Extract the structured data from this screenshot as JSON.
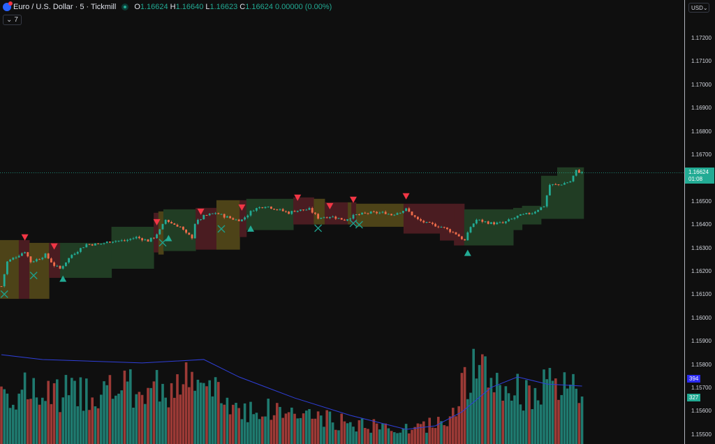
{
  "header": {
    "symbol_title": "Euro / U.S. Dollar · 5 · Tickmill",
    "o_label": "O",
    "o": "1.16624",
    "h_label": "H",
    "h": "1.16640",
    "l_label": "L",
    "l": "1.16623",
    "c_label": "C",
    "c": "1.16624",
    "change": "0.00000 (0.00%)",
    "indicators_count": "7"
  },
  "axis": {
    "currency": "USD",
    "ticks": [
      "1.17200",
      "1.17100",
      "1.17000",
      "1.16900",
      "1.16800",
      "1.16700",
      "1.16500",
      "1.16400",
      "1.16300",
      "1.16200",
      "1.16100",
      "1.16000",
      "1.15900",
      "1.15800",
      "1.15700",
      "1.15600",
      "1.15500"
    ],
    "last_price": "1.16624",
    "countdown": "01:08",
    "volume_ma_label": "394",
    "volume_label": "327"
  },
  "colors": {
    "background": "#0f0f0f",
    "up": "#22ab94",
    "down": "#ef6c4a",
    "band_green": "#213d24",
    "band_yellow": "#4d4318",
    "band_red": "#4a1c21",
    "signal_sell": "#f23645",
    "signal_buy": "#22ab94",
    "volume_ma": "#2f3fd9",
    "volume_ma_label": "#2962ff"
  },
  "chart_data": {
    "type": "candlestick",
    "bar_count": 199,
    "close_path": [
      [
        0,
        1.16137
      ],
      [
        2,
        1.16242
      ],
      [
        6,
        1.16272
      ],
      [
        8,
        1.16287
      ],
      [
        10,
        1.16242
      ],
      [
        13,
        1.16257
      ],
      [
        15,
        1.16272
      ],
      [
        18,
        1.16227
      ],
      [
        20,
        1.16212
      ],
      [
        24,
        1.16272
      ],
      [
        29,
        1.16317
      ],
      [
        33,
        1.16317
      ],
      [
        38,
        1.16332
      ],
      [
        42,
        1.16332
      ],
      [
        46,
        1.16347
      ],
      [
        50,
        1.16332
      ],
      [
        52,
        1.16347
      ],
      [
        54,
        1.16377
      ],
      [
        56,
        1.16422
      ],
      [
        58,
        1.16407
      ],
      [
        61,
        1.16392
      ],
      [
        63,
        1.16362
      ],
      [
        65,
        1.16347
      ],
      [
        66,
        1.16407
      ],
      [
        69,
        1.16437
      ],
      [
        73,
        1.16452
      ],
      [
        76,
        1.16437
      ],
      [
        80,
        1.16422
      ],
      [
        82,
        1.16422
      ],
      [
        86,
        1.16467
      ],
      [
        90,
        1.16482
      ],
      [
        94,
        1.16467
      ],
      [
        98,
        1.16452
      ],
      [
        100,
        1.16461
      ],
      [
        105,
        1.16467
      ],
      [
        108,
        1.16431
      ],
      [
        112,
        1.16437
      ],
      [
        117,
        1.16422
      ],
      [
        121,
        1.16443
      ],
      [
        126,
        1.16452
      ],
      [
        131,
        1.16452
      ],
      [
        133,
        1.16443
      ],
      [
        138,
        1.16467
      ],
      [
        142,
        1.16422
      ],
      [
        145,
        1.16407
      ],
      [
        150,
        1.16392
      ],
      [
        155,
        1.16362
      ],
      [
        158,
        1.16332
      ],
      [
        160,
        1.16392
      ],
      [
        162,
        1.16422
      ],
      [
        167,
        1.16407
      ],
      [
        171,
        1.16407
      ],
      [
        176,
        1.16437
      ],
      [
        181,
        1.16452
      ],
      [
        185,
        1.16482
      ],
      [
        187,
        1.16572
      ],
      [
        190,
        1.16572
      ],
      [
        194,
        1.16587
      ],
      [
        196,
        1.16632
      ],
      [
        198,
        1.16624
      ]
    ],
    "bands": [
      {
        "from": 0,
        "to": 6.4,
        "state": "yellow",
        "upper": 1.16335,
        "lower": 1.16083
      },
      {
        "from": 6.4,
        "to": 10,
        "state": "red",
        "upper": 1.16335,
        "lower": 1.16083
      },
      {
        "from": 10,
        "to": 16.7,
        "state": "yellow",
        "upper": 1.16323,
        "lower": 1.16083
      },
      {
        "from": 16.7,
        "to": 20.5,
        "state": "red",
        "upper": 1.16323,
        "lower": 1.16173
      },
      {
        "from": 20.5,
        "to": 38,
        "state": "green",
        "upper": 1.16323,
        "lower": 1.16173
      },
      {
        "from": 38,
        "to": 52.4,
        "state": "green",
        "upper": 1.16392,
        "lower": 1.16212
      },
      {
        "from": 52.4,
        "to": 54,
        "state": "red",
        "upper": 1.16452,
        "lower": 1.16282
      },
      {
        "from": 54,
        "to": 55.7,
        "state": "yellow",
        "upper": 1.16458,
        "lower": 1.16273
      },
      {
        "from": 55.7,
        "to": 66.7,
        "state": "green",
        "upper": 1.16467,
        "lower": 1.16288
      },
      {
        "from": 66.7,
        "to": 73.8,
        "state": "red",
        "upper": 1.16473,
        "lower": 1.16294
      },
      {
        "from": 73.8,
        "to": 81.7,
        "state": "yellow",
        "upper": 1.16506,
        "lower": 1.16294
      },
      {
        "from": 81.7,
        "to": 84,
        "state": "red",
        "upper": 1.16506,
        "lower": 1.16348
      },
      {
        "from": 84,
        "to": 100,
        "state": "green",
        "upper": 1.16512,
        "lower": 1.16378
      },
      {
        "from": 100,
        "to": 107,
        "state": "red",
        "upper": 1.16518,
        "lower": 1.16402
      },
      {
        "from": 107,
        "to": 110.7,
        "state": "yellow",
        "upper": 1.16512,
        "lower": 1.16402
      },
      {
        "from": 110.7,
        "to": 118.6,
        "state": "red",
        "upper": 1.16497,
        "lower": 1.16402
      },
      {
        "from": 118.6,
        "to": 119.8,
        "state": "yellow",
        "upper": 1.16497,
        "lower": 1.16402
      },
      {
        "from": 119.8,
        "to": 121.4,
        "state": "red",
        "upper": 1.16497,
        "lower": 1.16402
      },
      {
        "from": 121.4,
        "to": 137.6,
        "state": "yellow",
        "upper": 1.16491,
        "lower": 1.16392
      },
      {
        "from": 137.6,
        "to": 150,
        "state": "red",
        "upper": 1.16491,
        "lower": 1.16363
      },
      {
        "from": 150,
        "to": 154.8,
        "state": "red",
        "upper": 1.16491,
        "lower": 1.16333
      },
      {
        "from": 154.8,
        "to": 158.3,
        "state": "red",
        "upper": 1.16491,
        "lower": 1.16312
      },
      {
        "from": 158.3,
        "to": 175,
        "state": "green",
        "upper": 1.16467,
        "lower": 1.16312
      },
      {
        "from": 175,
        "to": 178,
        "state": "green",
        "upper": 1.16473,
        "lower": 1.16378
      },
      {
        "from": 178,
        "to": 184.5,
        "state": "green",
        "upper": 1.16482,
        "lower": 1.16402
      },
      {
        "from": 184.5,
        "to": 190,
        "state": "green",
        "upper": 1.16611,
        "lower": 1.16426
      },
      {
        "from": 190,
        "to": 199,
        "state": "green",
        "upper": 1.16647,
        "lower": 1.16426
      }
    ],
    "sell_signals": [
      [
        8,
        1.16333
      ],
      [
        18,
        1.16294
      ],
      [
        53,
        1.16398
      ],
      [
        68,
        1.16443
      ],
      [
        82,
        1.16461
      ],
      [
        101,
        1.16503
      ],
      [
        112,
        1.16467
      ],
      [
        120,
        1.16494
      ],
      [
        138,
        1.16509
      ]
    ],
    "buy_signals": [
      [
        21,
        1.16183
      ],
      [
        57,
        1.16357
      ],
      [
        85,
        1.16398
      ],
      [
        159,
        1.16294
      ]
    ],
    "cross_markers": [
      [
        1,
        1.16103
      ],
      [
        11,
        1.16183
      ],
      [
        55,
        1.16324
      ],
      [
        75,
        1.16383
      ],
      [
        108,
        1.16386
      ],
      [
        120,
        1.16407
      ],
      [
        122,
        1.16401
      ]
    ],
    "price_range": [
      1.1545,
      1.1725
    ],
    "volume_envelope": [
      [
        0,
        420
      ],
      [
        14,
        380
      ],
      [
        30,
        400
      ],
      [
        50,
        420
      ],
      [
        65,
        470
      ],
      [
        72,
        400
      ],
      [
        80,
        280
      ],
      [
        100,
        240
      ],
      [
        115,
        170
      ],
      [
        130,
        130
      ],
      [
        140,
        110
      ],
      [
        150,
        170
      ],
      [
        155,
        300
      ],
      [
        160,
        560
      ],
      [
        167,
        480
      ],
      [
        175,
        400
      ],
      [
        190,
        430
      ],
      [
        198,
        380
      ]
    ],
    "volume_ma": [
      [
        0,
        615
      ],
      [
        14,
        582
      ],
      [
        48,
        558
      ],
      [
        69,
        582
      ],
      [
        81,
        462
      ],
      [
        100,
        317
      ],
      [
        119,
        197
      ],
      [
        138,
        101
      ],
      [
        148,
        125
      ],
      [
        157,
        221
      ],
      [
        167,
        389
      ],
      [
        176,
        462
      ],
      [
        186,
        413
      ],
      [
        198,
        399
      ]
    ],
    "last_volume": 327,
    "last_volume_ma": 394
  }
}
